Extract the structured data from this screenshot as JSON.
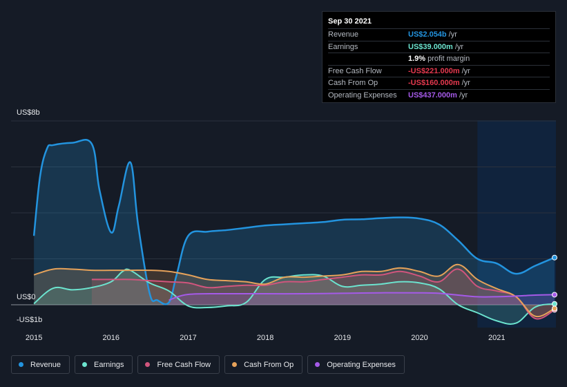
{
  "tooltip": {
    "date": "Sep 30 2021",
    "rows": [
      {
        "label": "Revenue",
        "value": "US$2.054b",
        "unit": "/yr",
        "color": "#2394df"
      },
      {
        "label": "Earnings",
        "value": "US$39.000m",
        "unit": "/yr",
        "color": "#6ce4cf"
      },
      {
        "label": "",
        "value": "1.9%",
        "unit": "profit margin",
        "color": "#ffffff"
      },
      {
        "label": "Free Cash Flow",
        "value": "-US$221.000m",
        "unit": "/yr",
        "color": "#e6394f"
      },
      {
        "label": "Cash From Op",
        "value": "-US$160.000m",
        "unit": "/yr",
        "color": "#e6394f"
      },
      {
        "label": "Operating Expenses",
        "value": "US$437.000m",
        "unit": "/yr",
        "color": "#a55ae8"
      }
    ]
  },
  "legend": [
    {
      "label": "Revenue",
      "color": "#2394df"
    },
    {
      "label": "Earnings",
      "color": "#6ce4cf"
    },
    {
      "label": "Free Cash Flow",
      "color": "#d1557d"
    },
    {
      "label": "Cash From Op",
      "color": "#e6a25a"
    },
    {
      "label": "Operating Expenses",
      "color": "#a55ae8"
    }
  ],
  "chart_data": {
    "type": "area",
    "y_unit_labels": [
      "US$8b",
      "US$0",
      "-US$1b"
    ],
    "ylim": [
      -1,
      8
    ],
    "xlim": [
      2014.99,
      2021.75
    ],
    "x_ticks": [
      2015,
      2016,
      2017,
      2018,
      2019,
      2020,
      2021
    ],
    "x_tick_labels": [
      "2015",
      "2016",
      "2017",
      "2018",
      "2019",
      "2020",
      "2021"
    ],
    "grid": true,
    "forecast_shade_start": 2020.75,
    "series": [
      {
        "name": "Revenue",
        "color": "#2394df",
        "x": [
          2015.0,
          2015.08,
          2015.17,
          2015.25,
          2015.5,
          2015.75,
          2015.85,
          2016.0,
          2016.1,
          2016.25,
          2016.35,
          2016.5,
          2016.6,
          2016.75,
          2016.85,
          2017.0,
          2017.25,
          2017.5,
          2017.75,
          2018.0,
          2018.25,
          2018.5,
          2018.75,
          2019.0,
          2019.25,
          2019.5,
          2019.75,
          2020.0,
          2020.25,
          2020.5,
          2020.75,
          2021.0,
          2021.25,
          2021.5,
          2021.75
        ],
        "values": [
          3.0,
          5.6,
          6.8,
          6.95,
          7.05,
          7.0,
          5.0,
          3.15,
          4.3,
          6.2,
          3.5,
          0.5,
          0.2,
          0.1,
          1.3,
          3.0,
          3.18,
          3.25,
          3.35,
          3.45,
          3.5,
          3.55,
          3.6,
          3.7,
          3.72,
          3.77,
          3.8,
          3.75,
          3.5,
          2.8,
          2.0,
          1.8,
          1.35,
          1.7,
          2.054
        ]
      },
      {
        "name": "Earnings",
        "color": "#6ce4cf",
        "x": [
          2015.0,
          2015.25,
          2015.5,
          2015.75,
          2016.0,
          2016.15,
          2016.25,
          2016.5,
          2016.75,
          2017.0,
          2017.25,
          2017.5,
          2017.75,
          2018.0,
          2018.25,
          2018.5,
          2018.75,
          2019.0,
          2019.25,
          2019.5,
          2019.75,
          2020.0,
          2020.25,
          2020.5,
          2020.75,
          2021.0,
          2021.25,
          2021.5,
          2021.75
        ],
        "values": [
          0.05,
          0.72,
          0.65,
          0.75,
          1.0,
          1.45,
          1.5,
          0.95,
          0.6,
          -0.05,
          -0.12,
          -0.05,
          0.1,
          1.1,
          1.2,
          1.3,
          1.25,
          0.8,
          0.85,
          0.9,
          1.0,
          0.95,
          0.7,
          0.0,
          -0.35,
          -0.7,
          -0.8,
          -0.1,
          0.039
        ]
      },
      {
        "name": "Free Cash Flow",
        "color": "#d1557d",
        "x": [
          2015.75,
          2016.0,
          2016.25,
          2016.5,
          2016.75,
          2017.0,
          2017.25,
          2017.5,
          2017.75,
          2018.0,
          2018.25,
          2018.5,
          2018.75,
          2019.0,
          2019.25,
          2019.5,
          2019.75,
          2020.0,
          2020.25,
          2020.5,
          2020.75,
          2021.0,
          2021.25,
          2021.5,
          2021.75
        ],
        "values": [
          1.1,
          1.1,
          1.1,
          1.05,
          1.0,
          0.95,
          0.75,
          0.8,
          0.85,
          0.85,
          1.0,
          1.0,
          1.1,
          1.2,
          1.3,
          1.3,
          1.45,
          1.25,
          1.0,
          1.55,
          0.8,
          0.6,
          0.35,
          -0.6,
          -0.221
        ]
      },
      {
        "name": "Cash From Op",
        "color": "#e6a25a",
        "x": [
          2015.0,
          2015.25,
          2015.5,
          2015.75,
          2016.0,
          2016.25,
          2016.5,
          2016.75,
          2017.0,
          2017.25,
          2017.5,
          2017.75,
          2018.0,
          2018.25,
          2018.5,
          2018.75,
          2019.0,
          2019.25,
          2019.5,
          2019.75,
          2020.0,
          2020.25,
          2020.5,
          2020.75,
          2021.0,
          2021.25,
          2021.5,
          2021.75
        ],
        "values": [
          1.3,
          1.55,
          1.55,
          1.5,
          1.5,
          1.5,
          1.5,
          1.45,
          1.3,
          1.1,
          1.05,
          1.0,
          0.9,
          1.2,
          1.2,
          1.25,
          1.3,
          1.45,
          1.45,
          1.6,
          1.45,
          1.25,
          1.75,
          1.1,
          0.7,
          0.35,
          -0.5,
          -0.16
        ]
      },
      {
        "name": "Operating Expenses",
        "color": "#a55ae8",
        "x": [
          2016.75,
          2017.0,
          2017.5,
          2018.0,
          2018.5,
          2019.0,
          2019.5,
          2020.0,
          2020.25,
          2020.5,
          2020.75,
          2021.0,
          2021.25,
          2021.5,
          2021.75
        ],
        "values": [
          0.2,
          0.45,
          0.48,
          0.48,
          0.48,
          0.5,
          0.52,
          0.52,
          0.5,
          0.42,
          0.35,
          0.35,
          0.38,
          0.42,
          0.437
        ]
      }
    ]
  }
}
